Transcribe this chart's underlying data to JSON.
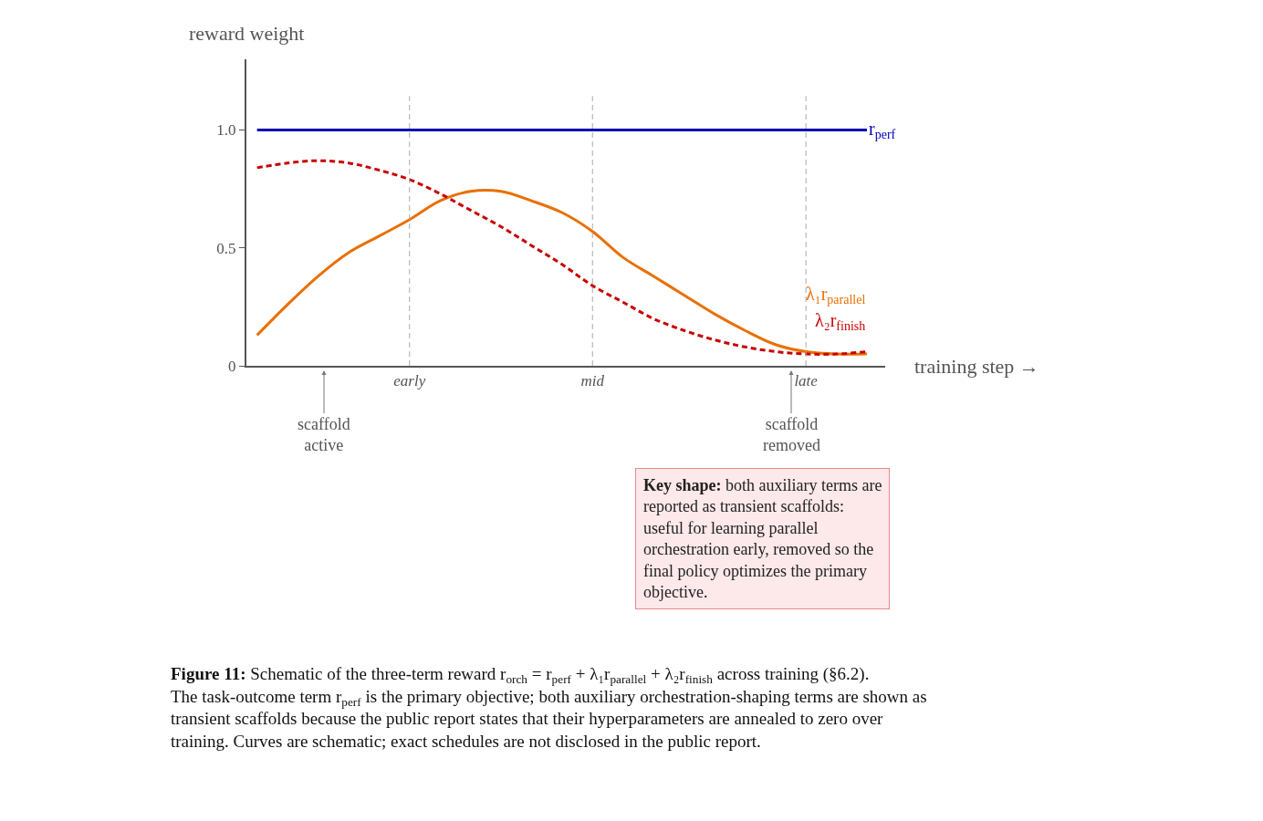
{
  "chart_data": {
    "type": "line",
    "xlabel": "training step →",
    "ylabel": "reward weight",
    "categories": [
      null,
      null,
      null,
      null,
      null,
      "early",
      null,
      null,
      null,
      null,
      null,
      "mid",
      null,
      null,
      null,
      null,
      null,
      null,
      "late",
      null,
      null
    ],
    "ylim": [
      0,
      1.3
    ],
    "yticks": [
      0,
      0.5,
      {
        "value": 1.0,
        "label": "1.0"
      }
    ],
    "legend": false,
    "marker": "none",
    "series": [
      {
        "name": "r$_{perf}$",
        "color": "#0000b4",
        "line_style": "solid",
        "values": [
          1.0,
          1.0,
          1.0,
          1.0,
          1.0,
          1.0,
          1.0,
          1.0,
          1.0,
          1.0,
          1.0,
          1.0,
          1.0,
          1.0,
          1.0,
          1.0,
          1.0,
          1.0,
          1.0,
          1.0,
          1.0
        ]
      },
      {
        "name": "λ₁r$_{parallel}$",
        "color": "#e87000",
        "line_style": "solid",
        "values": [
          0.13,
          0.26,
          0.38,
          0.48,
          0.55,
          0.62,
          0.7,
          0.74,
          0.74,
          0.7,
          0.65,
          0.57,
          0.46,
          0.38,
          0.3,
          0.22,
          0.15,
          0.09,
          0.06,
          0.05,
          0.05
        ]
      },
      {
        "name": "λ₂r$_{finish}$",
        "color": "#c80000",
        "line_style": "dashed",
        "values": [
          0.84,
          0.86,
          0.87,
          0.86,
          0.83,
          0.79,
          0.73,
          0.66,
          0.59,
          0.51,
          0.43,
          0.34,
          0.27,
          0.2,
          0.15,
          0.11,
          0.08,
          0.06,
          0.05,
          0.05,
          0.06
        ]
      }
    ],
    "ref_lines": [
      {
        "axis": "x",
        "value": "early",
        "color": "#aaaaaa",
        "line_style": "dashed"
      },
      {
        "axis": "x",
        "value": "mid",
        "color": "#aaaaaa",
        "line_style": "dashed"
      },
      {
        "axis": "x",
        "value": "late",
        "color": "#aaaaaa",
        "line_style": "dashed"
      }
    ],
    "annotations": [
      "scaffold active",
      "scaffold removed",
      "Key shape: both auxiliary terms are reported as transient scaffolds: useful for learning parallel orchestration early, removed so the final policy optimizes the primary objective.",
      "Figure 11: Schematic of the three-term reward r$_{orch}$ = r$_{perf}$ + λ₁r$_{parallel}$ + λ₂r$_{finish}$ across training (§6.2). The task-outcome term r$_{perf}$ is the primary objective; both auxiliary orchestration-shaping terms are shown as transient scaffolds because the public report states that their hyperparameters are annealed to zero over training. Curves are schematic; exact schedules are not disclosed in the public report."
    ]
  }
}
